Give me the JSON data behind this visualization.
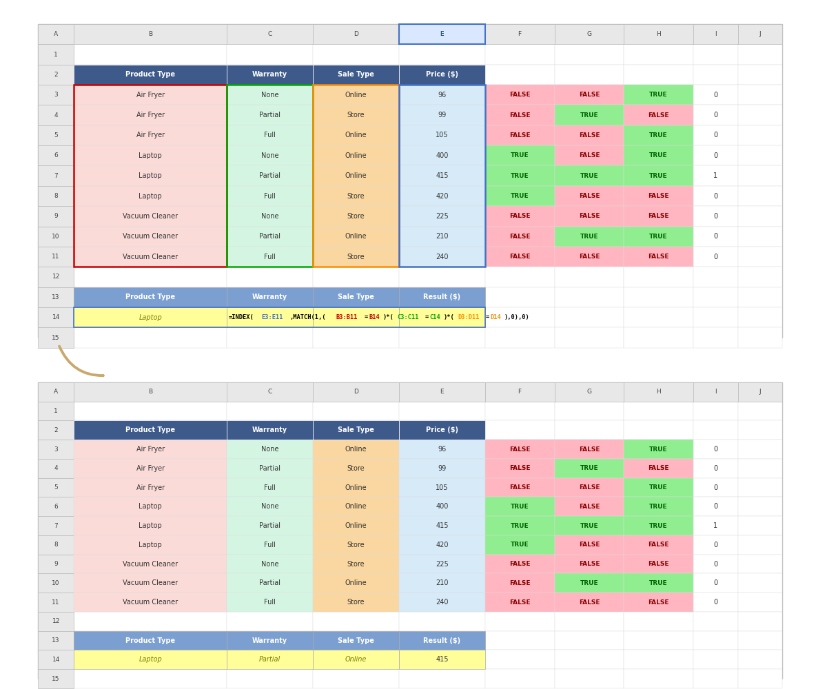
{
  "col_headers": [
    "A",
    "B",
    "C",
    "D",
    "E",
    "F",
    "G",
    "H",
    "I",
    "J"
  ],
  "table_headers": [
    "Product Type",
    "Warranty",
    "Sale Type",
    "Price ($)"
  ],
  "result_headers": [
    "Product Type",
    "Warranty",
    "Sale Type",
    "Result ($)"
  ],
  "data_rows": [
    [
      "Air Fryer",
      "None",
      "Online",
      "96"
    ],
    [
      "Air Fryer",
      "Partial",
      "Store",
      "99"
    ],
    [
      "Air Fryer",
      "Full",
      "Online",
      "105"
    ],
    [
      "Laptop",
      "None",
      "Online",
      "400"
    ],
    [
      "Laptop",
      "Partial",
      "Online",
      "415"
    ],
    [
      "Laptop",
      "Full",
      "Store",
      "420"
    ],
    [
      "Vacuum Cleaner",
      "None",
      "Store",
      "225"
    ],
    [
      "Vacuum Cleaner",
      "Partial",
      "Online",
      "210"
    ],
    [
      "Vacuum Cleaner",
      "Full",
      "Store",
      "240"
    ]
  ],
  "bool_F": [
    [
      "FALSE",
      "FALSE",
      "TRUE"
    ],
    [
      "FALSE",
      "TRUE",
      "FALSE"
    ],
    [
      "FALSE",
      "FALSE",
      "TRUE"
    ],
    [
      "TRUE",
      "FALSE",
      "TRUE"
    ],
    [
      "TRUE",
      "TRUE",
      "TRUE"
    ],
    [
      "TRUE",
      "FALSE",
      "FALSE"
    ],
    [
      "FALSE",
      "FALSE",
      "FALSE"
    ],
    [
      "FALSE",
      "TRUE",
      "TRUE"
    ],
    [
      "FALSE",
      "FALSE",
      "FALSE"
    ]
  ],
  "product_vals": [
    "0",
    "0",
    "0",
    "0",
    "1",
    "0",
    "0",
    "0",
    "0"
  ],
  "header_bg": "#3D5A8A",
  "header_text": "#FFFFFF",
  "result_header_bg": "#7B9FD0",
  "row_bg_product": "#FADBD8",
  "row_bg_warranty": "#D5F5E3",
  "row_bg_saletype": "#FAD7A0",
  "row_bg_price": "#D6EAF8",
  "true_bg": "#90EE90",
  "true_text": "#006400",
  "false_bg": "#FFB6C1",
  "false_text": "#8B0000",
  "yellow_bg": "#FFFE99",
  "yellow_text": "#7B7B00",
  "arrow_color": "#C8A96E",
  "border_red": "#CC0000",
  "border_green": "#00AA00",
  "border_orange": "#FF8C00",
  "border_blue": "#4472C4",
  "col_header_highlight_bg": "#D9E8FF",
  "col_header_highlight_border": "#4472C4"
}
